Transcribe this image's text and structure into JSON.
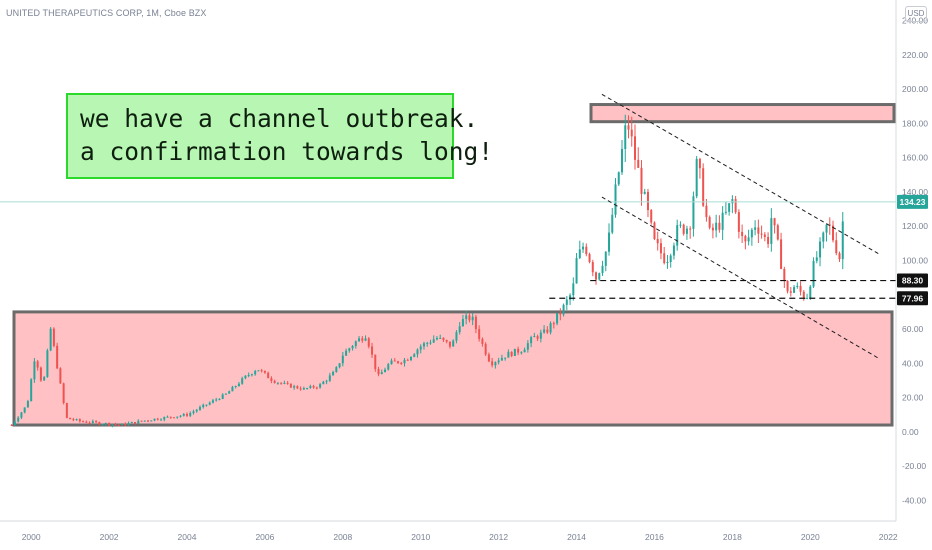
{
  "header": {
    "symbol_title": "UNITED THERAPEUTICS CORP, 1M, Cboe BZX",
    "currency": "USD"
  },
  "annotation": {
    "line1": "we have a channel outbreak.",
    "line2": "a confirmation towards long!"
  },
  "colors": {
    "up": "#26a69a",
    "down": "#ef5350",
    "zone_fill": "#ffc1c4",
    "zone_border": "#6b6b6b",
    "note_fill": "#b7f7b3",
    "note_border": "#2bd92b",
    "last_price": "#26a69a"
  },
  "chart_data": {
    "type": "candlestick",
    "xlim": [
      1999.2,
      2022.2
    ],
    "ylim": [
      -52,
      252
    ],
    "x_ticks": [
      2000,
      2002,
      2004,
      2006,
      2008,
      2010,
      2012,
      2014,
      2016,
      2018,
      2020,
      2022
    ],
    "y_ticks": [
      -40,
      -20,
      0,
      20,
      40,
      60,
      80,
      100,
      120,
      140,
      160,
      180,
      200,
      220,
      240
    ],
    "price_path": [
      [
        1999.5,
        4
      ],
      [
        1999.9,
        16
      ],
      [
        2000.1,
        45
      ],
      [
        2000.3,
        26
      ],
      [
        2000.5,
        60
      ],
      [
        2000.7,
        34
      ],
      [
        2000.9,
        8
      ],
      [
        2001.3,
        6
      ],
      [
        2001.8,
        5
      ],
      [
        2002.3,
        4
      ],
      [
        2003.0,
        7
      ],
      [
        2004.0,
        10
      ],
      [
        2004.5,
        16
      ],
      [
        2005.0,
        22
      ],
      [
        2005.5,
        32
      ],
      [
        2005.8,
        37
      ],
      [
        2006.2,
        30
      ],
      [
        2006.6,
        27
      ],
      [
        2007.0,
        25
      ],
      [
        2007.4,
        27
      ],
      [
        2007.8,
        35
      ],
      [
        2008.0,
        45
      ],
      [
        2008.3,
        52
      ],
      [
        2008.6,
        57
      ],
      [
        2008.9,
        32
      ],
      [
        2009.2,
        40
      ],
      [
        2009.6,
        42
      ],
      [
        2010.0,
        50
      ],
      [
        2010.4,
        55
      ],
      [
        2010.8,
        50
      ],
      [
        2011.0,
        64
      ],
      [
        2011.3,
        67
      ],
      [
        2011.6,
        50
      ],
      [
        2011.8,
        40
      ],
      [
        2012.2,
        45
      ],
      [
        2012.6,
        48
      ],
      [
        2012.9,
        55
      ],
      [
        2013.2,
        58
      ],
      [
        2013.6,
        70
      ],
      [
        2013.9,
        82
      ],
      [
        2014.0,
        100
      ],
      [
        2014.2,
        110
      ],
      [
        2014.5,
        90
      ],
      [
        2014.8,
        108
      ],
      [
        2015.0,
        140
      ],
      [
        2015.3,
        182
      ],
      [
        2015.5,
        160
      ],
      [
        2015.7,
        140
      ],
      [
        2016.0,
        110
      ],
      [
        2016.3,
        100
      ],
      [
        2016.6,
        118
      ],
      [
        2016.9,
        120
      ],
      [
        2017.1,
        158
      ],
      [
        2017.4,
        115
      ],
      [
        2017.8,
        125
      ],
      [
        2018.0,
        135
      ],
      [
        2018.3,
        108
      ],
      [
        2018.6,
        122
      ],
      [
        2018.9,
        110
      ],
      [
        2019.0,
        125
      ],
      [
        2019.2,
        105
      ],
      [
        2019.4,
        80
      ],
      [
        2019.6,
        85
      ],
      [
        2019.9,
        78
      ],
      [
        2020.1,
        98
      ],
      [
        2020.3,
        110
      ],
      [
        2020.45,
        122
      ],
      [
        2020.6,
        112
      ],
      [
        2020.75,
        102
      ],
      [
        2020.88,
        134.23
      ]
    ],
    "zones": [
      {
        "y_low": 4,
        "y_high": 70
      },
      {
        "y_low": 181,
        "y_high": 191
      }
    ],
    "support_levels": [
      {
        "value": 88.3,
        "label": "88.30",
        "from_x": 2014.35
      },
      {
        "value": 77.96,
        "label": "77.96",
        "from_x": 2013.3
      }
    ],
    "channel_lines": [
      {
        "from": [
          2014.65,
          197
        ],
        "to": [
          2021.75,
          104
        ]
      },
      {
        "from": [
          2014.65,
          137
        ],
        "to": [
          2021.75,
          43
        ]
      }
    ],
    "last_price": {
      "value": 134.23,
      "label": "134.23"
    }
  }
}
